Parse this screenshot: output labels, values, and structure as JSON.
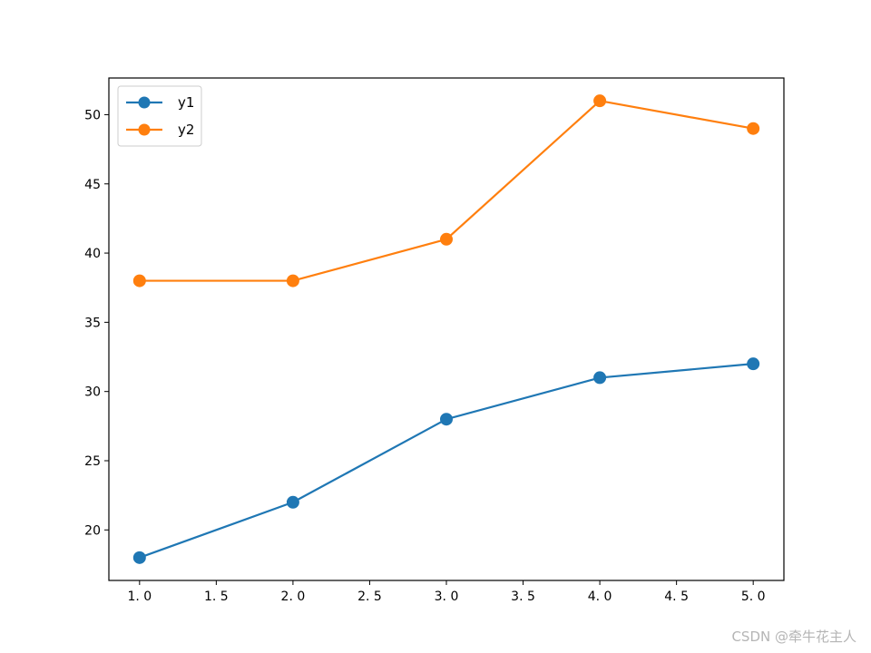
{
  "chart_data": {
    "type": "line",
    "x": [
      1.0,
      2.0,
      3.0,
      4.0,
      5.0
    ],
    "series": [
      {
        "name": "y1",
        "values": [
          18,
          22,
          28,
          31,
          32
        ],
        "color": "#1f77b4",
        "marker": "circle"
      },
      {
        "name": "y2",
        "values": [
          38,
          38,
          41,
          51,
          49
        ],
        "color": "#ff7f0e",
        "marker": "circle"
      }
    ],
    "title": "",
    "xlabel": "",
    "ylabel": "",
    "xlim": [
      0.8,
      5.2
    ],
    "ylim": [
      16.35,
      52.65
    ],
    "xticks": [
      1.0,
      1.5,
      2.0,
      2.5,
      3.0,
      3.5,
      4.0,
      4.5,
      5.0
    ],
    "xtick_labels": [
      "1. 0",
      "1. 5",
      "2. 0",
      "2. 5",
      "3. 0",
      "3. 5",
      "4. 0",
      "4. 5",
      "5. 0"
    ],
    "yticks": [
      20,
      25,
      30,
      35,
      40,
      45,
      50
    ],
    "ytick_labels": [
      "20",
      "25",
      "30",
      "35",
      "40",
      "45",
      "50"
    ],
    "grid": false,
    "legend_position": "upper-left"
  },
  "watermark": "CSDN @牵牛花主人"
}
